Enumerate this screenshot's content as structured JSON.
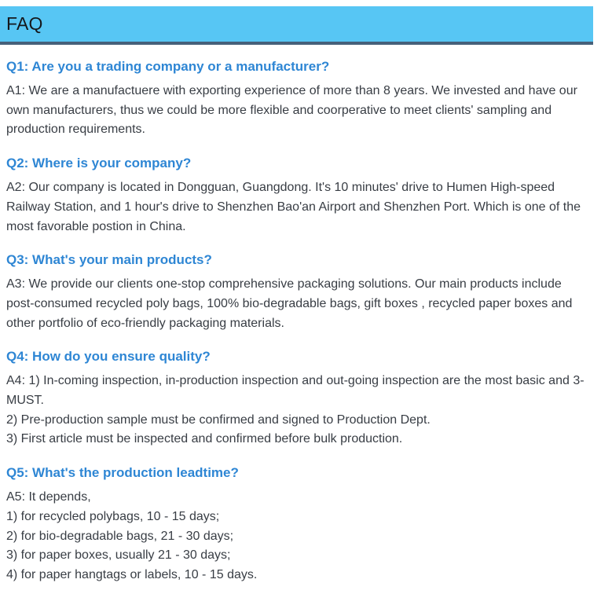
{
  "header": {
    "title": "FAQ"
  },
  "colors": {
    "header-bg": "#57c6f4",
    "header-border": "#46607a",
    "question-color": "#2e86d4",
    "answer-color": "#383d44",
    "title-color": "#15181c",
    "page-bg": "#ffffff"
  },
  "faq": {
    "items": [
      {
        "question": "Q1: Are you a trading company or a manufacturer?",
        "lines": [
          "A1: We are a manufactuere with exporting experience of more than 8 years. We invested and have our own manufacturers, thus we could be more flexible and coorperative to meet clients' sampling and production requirements."
        ]
      },
      {
        "question": "Q2: Where is your company?",
        "lines": [
          "A2: Our company is located in Dongguan, Guangdong. It's 10 minutes' drive to Humen High-speed Railway Station, and 1 hour's drive to Shenzhen Bao'an Airport and Shenzhen Port. Which is one of the most favorable postion in China."
        ]
      },
      {
        "question": "Q3: What's your main products?",
        "lines": [
          "A3: We provide our clients one-stop comprehensive packaging solutions. Our main products include post-consumed recycled poly bags, 100% bio-degradable bags, gift boxes , recycled paper boxes and other portfolio of eco-friendly packaging materials."
        ]
      },
      {
        "question": "Q4: How do you ensure quality?",
        "lines": [
          "A4: 1) In-coming inspection, in-production inspection and out-going inspection are the most basic and 3-MUST.",
          "2) Pre-production sample must be confirmed and signed to Production Dept.",
          "3) First article must be inspected and confirmed before bulk production."
        ]
      },
      {
        "question": "Q5: What's the production leadtime?",
        "lines": [
          "A5: It depends,",
          "1) for recycled polybags, 10 - 15 days;",
          "2) for bio-degradable bags, 21 - 30 days;",
          "3) for paper boxes, usually 21 - 30 days;",
          "4) for paper hangtags or labels, 10 - 15 days."
        ]
      }
    ]
  }
}
